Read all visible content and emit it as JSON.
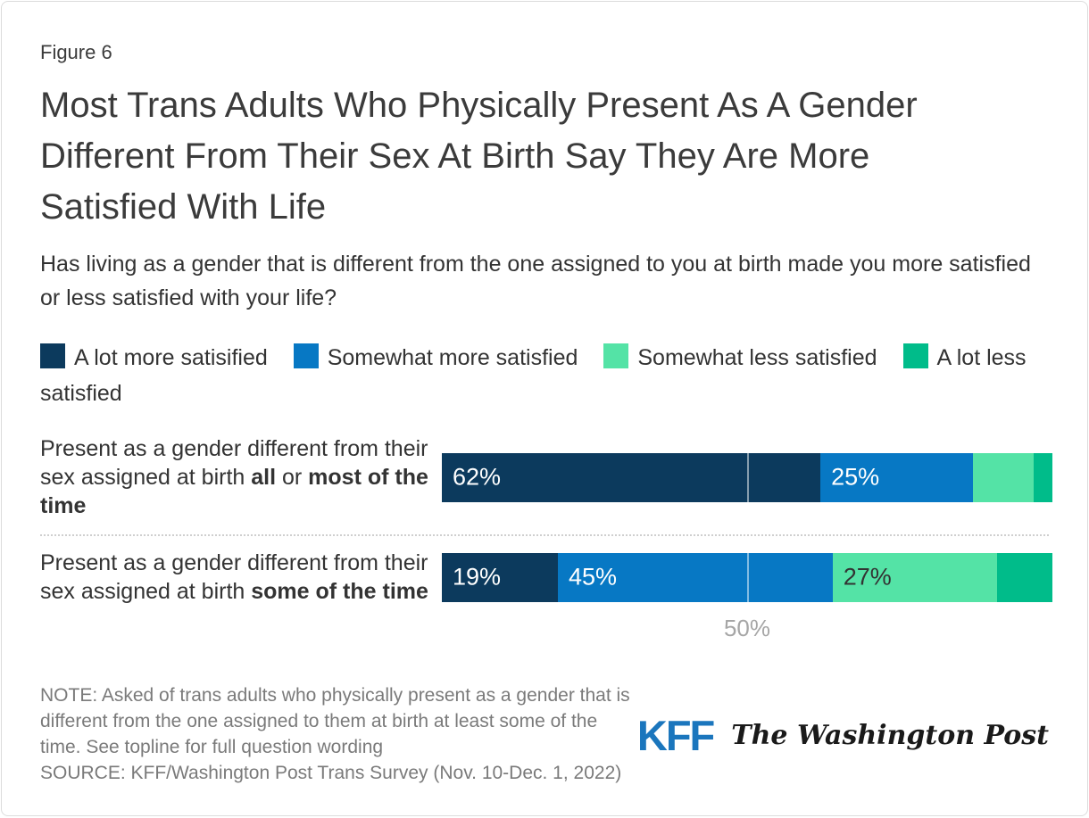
{
  "figure_label": "Figure 6",
  "title": "Most Trans Adults Who Physically Present As A Gender Different From Their Sex At Birth Say They Are More Satisfied With Life",
  "subtitle": "Has living as a gender that is different from the one assigned to you at birth made you more satisfied or less satisfied with your life?",
  "chart_data": {
    "type": "bar",
    "orientation": "horizontal-stacked",
    "unit": "%",
    "xlim": [
      0,
      100
    ],
    "gridline": {
      "value": 50,
      "label": "50%"
    },
    "min_label_value": 15,
    "legend": [
      {
        "label": "A lot more satisified",
        "color": "#0c3a5d",
        "label_color": "#ffffff"
      },
      {
        "label": "Somewhat more satisfied",
        "color": "#0778c4",
        "label_color": "#ffffff"
      },
      {
        "label": "Somewhat less satisfied",
        "color": "#54e3a6",
        "label_color": "#333333"
      },
      {
        "label": "A lot less satisfied",
        "color": "#00bc8a",
        "label_color": "#ffffff"
      }
    ],
    "categories": [
      {
        "name": "all-or-most-of-the-time",
        "label_parts": [
          {
            "text": "Present as a gender different from their sex assigned at birth ",
            "bold": false
          },
          {
            "text": "all",
            "bold": true
          },
          {
            "text": " or ",
            "bold": false
          },
          {
            "text": "most of the time",
            "bold": true
          }
        ],
        "values": [
          62,
          25,
          10,
          3
        ]
      },
      {
        "name": "some-of-the-time",
        "label_parts": [
          {
            "text": "Present as a gender different from their sex assigned at birth ",
            "bold": false
          },
          {
            "text": "some of the time",
            "bold": true
          }
        ],
        "values": [
          19,
          45,
          27,
          9
        ]
      }
    ]
  },
  "note": "NOTE: Asked of trans adults who physically present as a gender that is different from the one assigned to them at birth at least some of the time. See topline for full question wording",
  "source": "SOURCE: KFF/Washington Post Trans Survey (Nov. 10-Dec. 1, 2022)",
  "logos": {
    "kff": "KFF",
    "wapo": "The Washington Post"
  }
}
